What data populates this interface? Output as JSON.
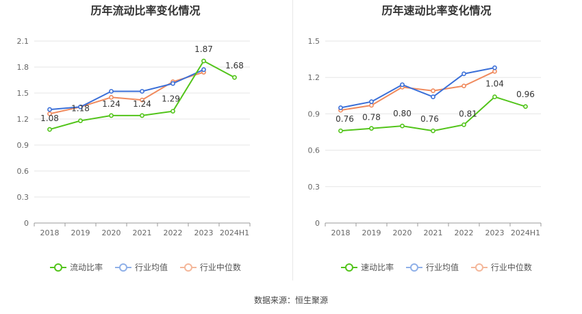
{
  "colors": {
    "primary": "#52c41a",
    "industry_avg": "#3a6fd8",
    "industry_median": "#f08a5d",
    "legend_primary": "#52c41a",
    "legend_avg": "#8fb0e8",
    "legend_median": "#f4b79a"
  },
  "source_text": "数据来源：恒生聚源",
  "chart_data": [
    {
      "type": "line",
      "title": "历年流动比率变化情况",
      "categories": [
        "2018",
        "2019",
        "2020",
        "2021",
        "2022",
        "2023",
        "2024H1"
      ],
      "ylim": [
        0,
        2.1
      ],
      "yticks": [
        "0",
        "0.3",
        "0.6",
        "0.9",
        "1.2",
        "1.5",
        "1.8",
        "2.1"
      ],
      "grid": true,
      "legend_position": "bottom",
      "series": [
        {
          "name": "流动比率",
          "values": [
            1.08,
            1.18,
            1.24,
            1.24,
            1.29,
            1.87,
            1.68
          ],
          "labels": [
            "1.08",
            "1.18",
            "1.24",
            "1.24",
            "1.29",
            "1.87",
            "1.68"
          ]
        },
        {
          "name": "行业均值",
          "values": [
            1.31,
            1.34,
            1.52,
            1.52,
            1.61,
            1.77,
            null
          ]
        },
        {
          "name": "行业中位数",
          "values": [
            1.26,
            1.34,
            1.45,
            1.42,
            1.63,
            1.74,
            null
          ]
        }
      ]
    },
    {
      "type": "line",
      "title": "历年速动比率变化情况",
      "categories": [
        "2018",
        "2019",
        "2020",
        "2021",
        "2022",
        "2023",
        "2024H1"
      ],
      "ylim": [
        0,
        1.5
      ],
      "yticks": [
        "0",
        "0.3",
        "0.6",
        "0.9",
        "1.2",
        "1.5"
      ],
      "grid": true,
      "legend_position": "bottom",
      "series": [
        {
          "name": "速动比率",
          "values": [
            0.76,
            0.78,
            0.8,
            0.76,
            0.81,
            1.04,
            0.96
          ],
          "labels": [
            "0.76",
            "0.78",
            "0.80",
            "0.76",
            "0.81",
            "1.04",
            "0.96"
          ]
        },
        {
          "name": "行业均值",
          "values": [
            0.95,
            1.0,
            1.14,
            1.04,
            1.23,
            1.28,
            null
          ]
        },
        {
          "name": "行业中位数",
          "values": [
            0.93,
            0.97,
            1.12,
            1.09,
            1.13,
            1.25,
            null
          ]
        }
      ]
    }
  ]
}
